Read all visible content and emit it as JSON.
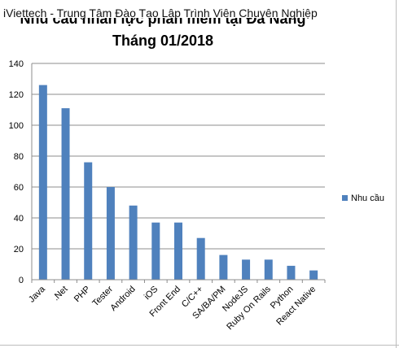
{
  "overlay_text": "iViettech - Trung Tâm Đào Tạo Lập Trình Viên Chuyên Nghiệp",
  "chart_data": {
    "type": "bar",
    "title_line1": "Nhu cầu nhân lực phần mềm tại Đà Nẵng",
    "title_line2": "Tháng 01/2018",
    "categories": [
      "Java",
      ".Net",
      "PHP",
      "Tester",
      "Android",
      "iOS",
      "Front End",
      "C/C++",
      "SA/BA/PM",
      "NodeJS",
      "Ruby On Rails",
      "Python",
      "React Native"
    ],
    "series": [
      {
        "name": "Nhu cầu",
        "values": [
          126,
          111,
          76,
          60,
          48,
          37,
          37,
          27,
          16,
          13,
          13,
          9,
          6
        ],
        "color": "#4f81bd"
      }
    ],
    "ylim": [
      0,
      140
    ],
    "yticks": [
      0,
      20,
      40,
      60,
      80,
      100,
      120,
      140
    ],
    "grid": true,
    "legend_position": "right"
  }
}
